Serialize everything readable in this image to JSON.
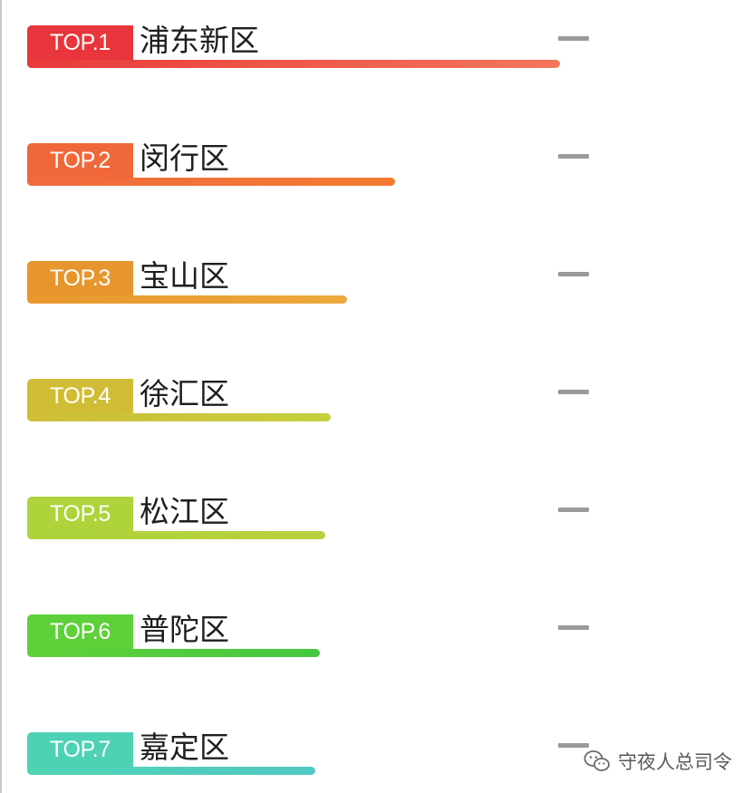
{
  "chart_data": {
    "type": "bar",
    "title": "",
    "xlabel": "",
    "ylabel": "",
    "ranks": [
      "TOP.1",
      "TOP.2",
      "TOP.3",
      "TOP.4",
      "TOP.5",
      "TOP.6",
      "TOP.7"
    ],
    "categories": [
      "浦东新区",
      "闵行区",
      "宝山区",
      "徐汇区",
      "松江区",
      "普陀区",
      "嘉定区"
    ],
    "values": [
      100,
      69,
      60,
      57,
      56,
      55,
      54
    ],
    "trends": [
      "flat",
      "flat",
      "flat",
      "flat",
      "flat",
      "flat",
      "flat"
    ],
    "colors": [
      {
        "badge": "#e8363c",
        "bar_start": "#e83a3a",
        "bar_end": "#f5765b"
      },
      {
        "badge": "#f0683a",
        "bar_start": "#f06a3d",
        "bar_end": "#f37b31"
      },
      {
        "badge": "#e7962e",
        "bar_start": "#e9972f",
        "bar_end": "#eba93d"
      },
      {
        "badge": "#d1bd35",
        "bar_start": "#cfbd38",
        "bar_end": "#c5cf3d"
      },
      {
        "badge": "#afd33b",
        "bar_start": "#acd43b",
        "bar_end": "#b9cf3f"
      },
      {
        "badge": "#5ed03a",
        "bar_start": "#5fd23a",
        "bar_end": "#45c840"
      },
      {
        "badge": "#4ed1b4",
        "bar_start": "#4fd4b4",
        "bar_end": "#52c8c4"
      }
    ]
  },
  "watermark": {
    "icon": "wechat-icon",
    "text": "守夜人总司令"
  }
}
